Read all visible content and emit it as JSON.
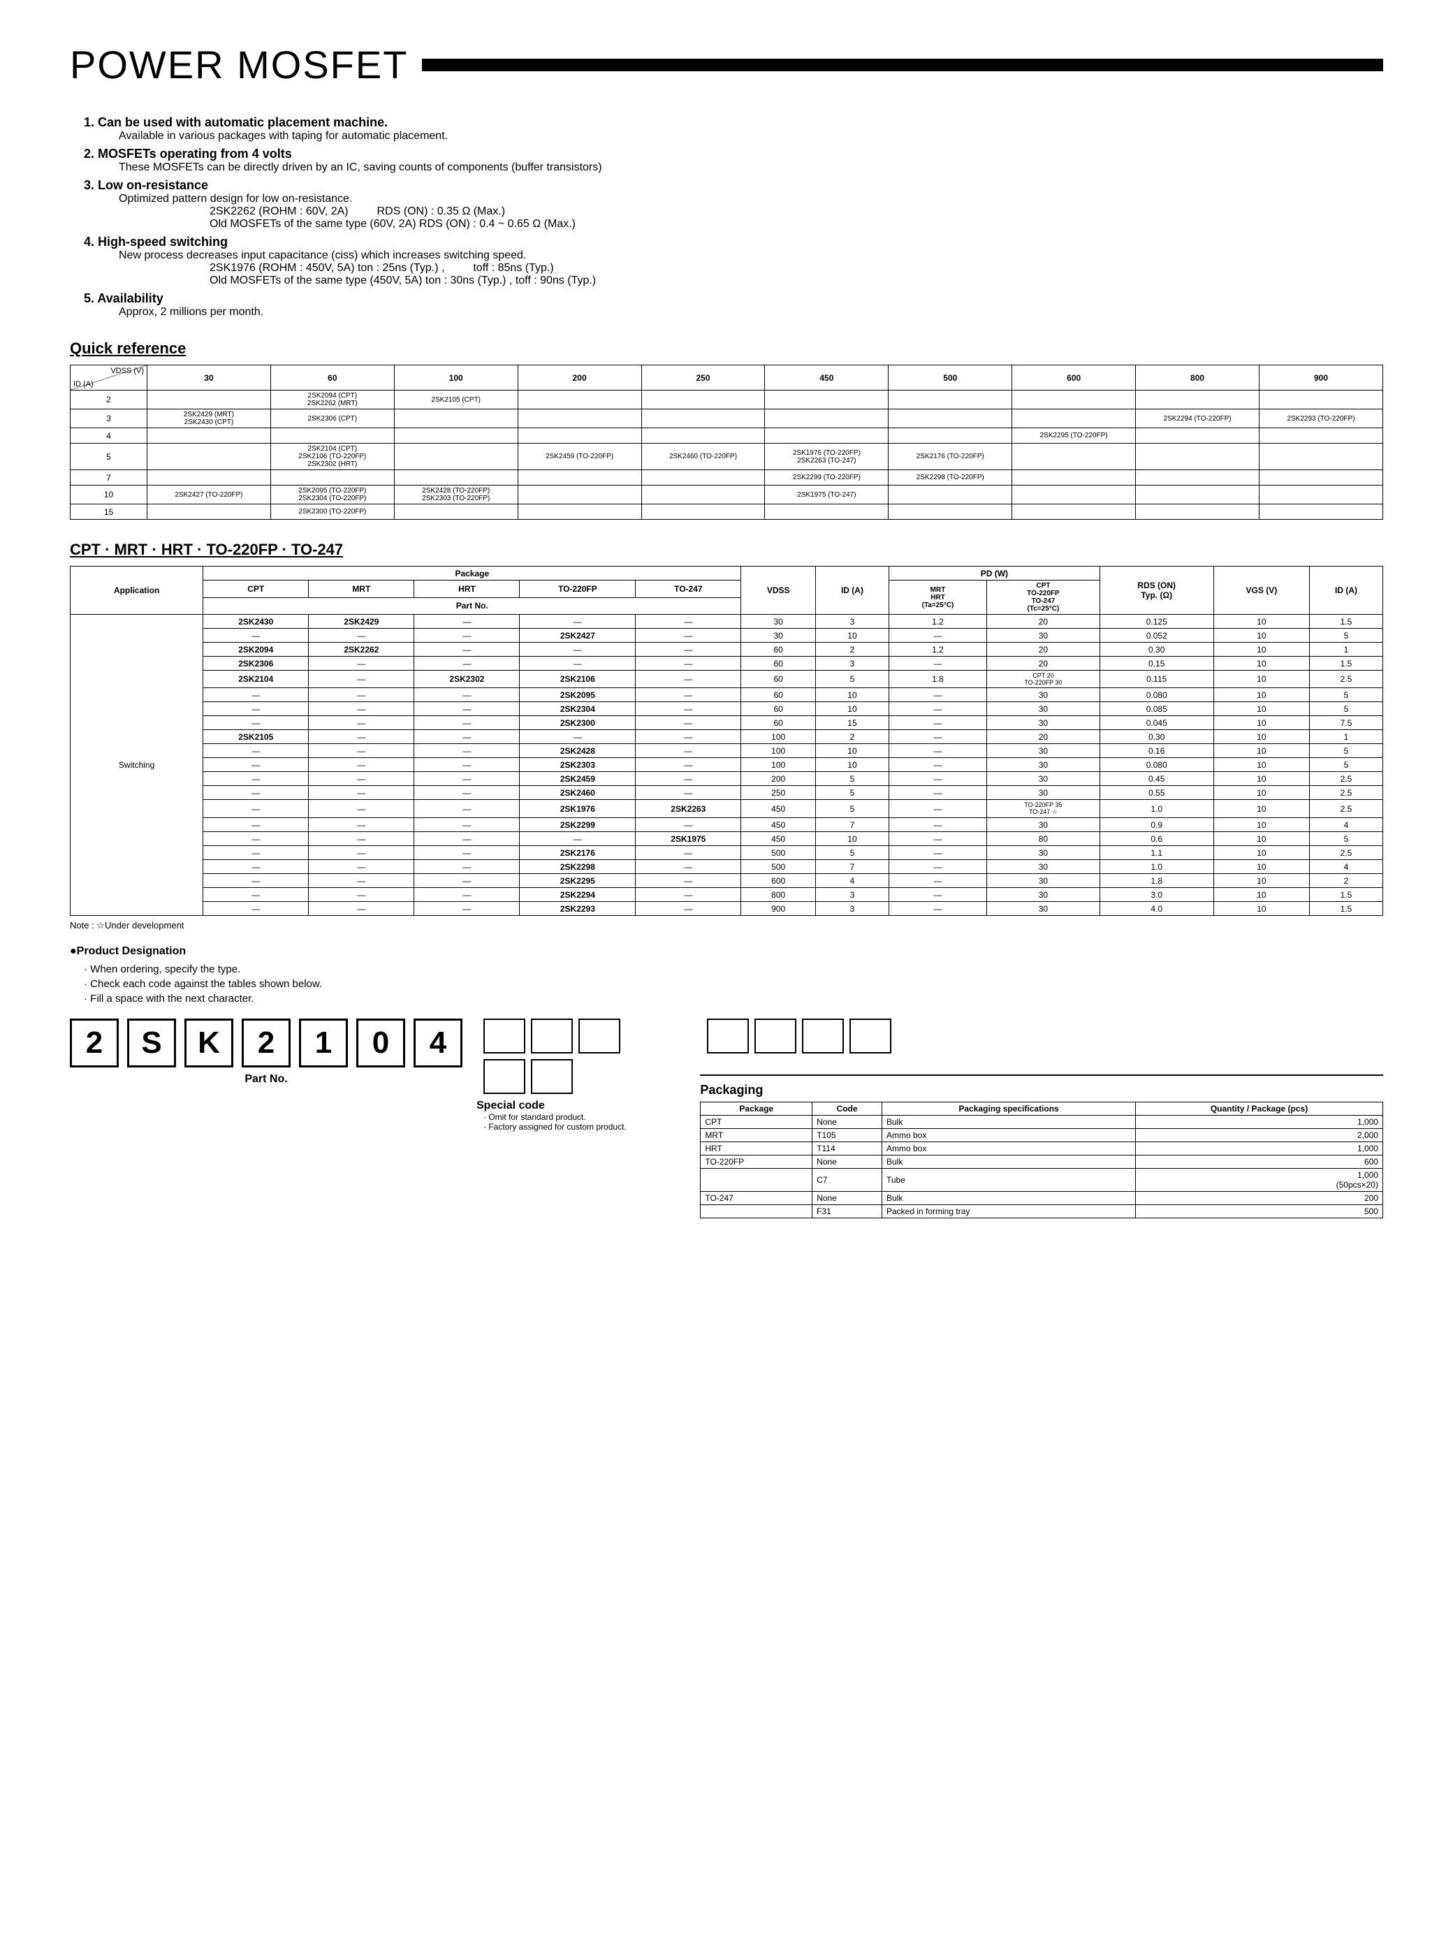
{
  "header": {
    "title": "POWER MOSFET"
  },
  "features": [
    {
      "num": "1.",
      "title": "Can be used with automatic placement machine.",
      "lines": [
        "Available in various packages with taping for automatic placement."
      ]
    },
    {
      "num": "2.",
      "title": "MOSFETs operating from 4 volts",
      "lines": [
        "These MOSFETs can be directly driven by an IC, saving counts of components (buffer transistors)"
      ]
    },
    {
      "num": "3.",
      "title": "Low on-resistance",
      "lines": [
        "Optimized pattern design for low on-resistance.",
        "2SK2262 (ROHM : 60V, 2A)    RDS (ON) : 0.35 Ω (Max.)",
        "Old MOSFETs of the same type (60V, 2A) RDS (ON) : 0.4 ~ 0.65 Ω (Max.)"
      ]
    },
    {
      "num": "4.",
      "title": "High-speed switching",
      "lines": [
        "New process decreases input capacitance (ciss) which increases switching speed.",
        "2SK1976 (ROHM : 450V, 5A) ton : 25ns (Typ.) ,    toff : 85ns (Typ.)",
        "Old MOSFETs of the same type (450V, 5A) ton : 30ns (Typ.) , toff : 90ns (Typ.)"
      ]
    },
    {
      "num": "5.",
      "title": "Availability",
      "lines": [
        "Approx, 2 millions per month."
      ]
    }
  ],
  "quick_reference": {
    "title": "Quick reference",
    "diag_top": "VDSS (V)",
    "diag_bot": "ID (A)",
    "v_cols": [
      "30",
      "60",
      "100",
      "200",
      "250",
      "450",
      "500",
      "600",
      "800",
      "900"
    ],
    "i_rows": [
      "2",
      "3",
      "4",
      "5",
      "7",
      "10",
      "15"
    ],
    "cells": {
      "2_60": "2SK2094 (CPT)\n2SK2262 (MRT)",
      "2_100": "2SK2105 (CPT)",
      "3_30": "2SK2429 (MRT)\n2SK2430 (CPT)",
      "3_60": "2SK2306 (CPT)",
      "3_800": "2SK2294 (TO-220FP)",
      "3_900": "2SK2293 (TO-220FP)",
      "4_600": "2SK2295 (TO-220FP)",
      "5_60": "2SK2104 (CPT)\n2SK2106 (TO-220FP)\n2SK2302 (HRT)",
      "5_200": "2SK2459 (TO-220FP)",
      "5_250": "2SK2460 (TO-220FP)",
      "5_450": "2SK1976 (TO-220FP)\n2SK2263 (TO-247)",
      "5_500": "2SK2176 (TO-220FP)",
      "7_450": "2SK2299 (TO-220FP)",
      "7_500": "2SK2298 (TO-220FP)",
      "10_30": "2SK2427 (TO-220FP)",
      "10_60": "2SK2095 (TO-220FP)\n2SK2304 (TO-220FP)",
      "10_100": "2SK2428 (TO-220FP)\n2SK2303 (TO-220FP)",
      "10_450": "2SK1975 (TO-247)",
      "15_60": "2SK2300 (TO-220FP)"
    }
  },
  "spec": {
    "title": "CPT · MRT · HRT · TO-220FP · TO-247",
    "headers": {
      "application": "Application",
      "package": "Package",
      "cpt": "CPT",
      "mrt": "MRT",
      "hrt": "HRT",
      "to220fp": "TO-220FP",
      "to247": "TO-247",
      "partno": "Part No.",
      "vdss": "VDSS",
      "id": "ID (A)",
      "pd": "PD (W)",
      "pd_mrt": "MRT\nHRT\n(Ta=25°C)",
      "pd_cpt": "CPT\nTO-220FP\nTO-247\n(Tc=25°C)",
      "rds": "RDS (ON)\nTyp. (Ω)",
      "vgs": "VGS (V)",
      "id2": "ID (A)"
    },
    "app": "Switching",
    "rows": [
      [
        "2SK2430",
        "2SK2429",
        "—",
        "—",
        "—",
        "30",
        "3",
        "1.2",
        "20",
        "0.125",
        "10",
        "1.5"
      ],
      [
        "—",
        "—",
        "—",
        "2SK2427",
        "—",
        "30",
        "10",
        "—",
        "30",
        "0.052",
        "10",
        "5"
      ],
      [
        "2SK2094",
        "2SK2262",
        "—",
        "—",
        "—",
        "60",
        "2",
        "1.2",
        "20",
        "0.30",
        "10",
        "1"
      ],
      [
        "2SK2306",
        "—",
        "—",
        "—",
        "—",
        "60",
        "3",
        "—",
        "20",
        "0.15",
        "10",
        "1.5"
      ],
      [
        "2SK2104",
        "—",
        "2SK2302",
        "2SK2106",
        "—",
        "60",
        "5",
        "1.8",
        "CPT 20 / TO-220FP 30",
        "0.115",
        "10",
        "2.5"
      ],
      [
        "—",
        "—",
        "—",
        "2SK2095",
        "—",
        "60",
        "10",
        "—",
        "30",
        "0.080",
        "10",
        "5"
      ],
      [
        "—",
        "—",
        "—",
        "2SK2304",
        "—",
        "60",
        "10",
        "—",
        "30",
        "0.085",
        "10",
        "5"
      ],
      [
        "—",
        "—",
        "—",
        "2SK2300",
        "—",
        "60",
        "15",
        "—",
        "30",
        "0.045",
        "10",
        "7.5"
      ],
      [
        "2SK2105",
        "—",
        "—",
        "—",
        "—",
        "100",
        "2",
        "—",
        "20",
        "0.30",
        "10",
        "1"
      ],
      [
        "—",
        "—",
        "—",
        "2SK2428",
        "—",
        "100",
        "10",
        "—",
        "30",
        "0.16",
        "10",
        "5"
      ],
      [
        "—",
        "—",
        "—",
        "2SK2303",
        "—",
        "100",
        "10",
        "—",
        "30",
        "0.080",
        "10",
        "5"
      ],
      [
        "—",
        "—",
        "—",
        "2SK2459",
        "—",
        "200",
        "5",
        "—",
        "30",
        "0.45",
        "10",
        "2.5"
      ],
      [
        "—",
        "—",
        "—",
        "2SK2460",
        "—",
        "250",
        "5",
        "—",
        "30",
        "0.55",
        "10",
        "2.5"
      ],
      [
        "—",
        "—",
        "—",
        "2SK1976",
        "2SK2263",
        "450",
        "5",
        "—",
        "TO-220FP 35 / TO-247 ☆",
        "1.0",
        "10",
        "2.5"
      ],
      [
        "—",
        "—",
        "—",
        "2SK2299",
        "—",
        "450",
        "7",
        "—",
        "30",
        "0.9",
        "10",
        "4"
      ],
      [
        "—",
        "—",
        "—",
        "—",
        "2SK1975",
        "450",
        "10",
        "—",
        "80",
        "0.6",
        "10",
        "5"
      ],
      [
        "—",
        "—",
        "—",
        "2SK2176",
        "—",
        "500",
        "5",
        "—",
        "30",
        "1.1",
        "10",
        "2.5"
      ],
      [
        "—",
        "—",
        "—",
        "2SK2298",
        "—",
        "500",
        "7",
        "—",
        "30",
        "1.0",
        "10",
        "4"
      ],
      [
        "—",
        "—",
        "—",
        "2SK2295",
        "—",
        "600",
        "4",
        "—",
        "30",
        "1.8",
        "10",
        "2"
      ],
      [
        "—",
        "—",
        "—",
        "2SK2294",
        "—",
        "800",
        "3",
        "—",
        "30",
        "3.0",
        "10",
        "1.5"
      ],
      [
        "—",
        "—",
        "—",
        "2SK2293",
        "—",
        "900",
        "3",
        "—",
        "30",
        "4.0",
        "10",
        "1.5"
      ]
    ],
    "note": "Note : ☆Under development"
  },
  "designation": {
    "title": "●Product Designation",
    "bullets": [
      "· When ordering, specify the type.",
      "· Check each code against the tables shown below.",
      "· Fill a space with the next character."
    ],
    "partno_chars": [
      "2",
      "S",
      "K",
      "2",
      "1",
      "0",
      "4"
    ],
    "partno_label": "Part No.",
    "special_label": "Special code",
    "special_sub1": "· Omit for standard product.",
    "special_sub2": "· Factory assigned for custom product."
  },
  "packaging": {
    "title": "Packaging",
    "headers": [
      "Package",
      "Code",
      "Packaging specifications",
      "Quantity / Package (pcs)"
    ],
    "rows": [
      [
        "CPT",
        "None",
        "Bulk",
        "1,000"
      ],
      [
        "MRT",
        "T105",
        "Ammo box",
        "2,000"
      ],
      [
        "HRT",
        "T114",
        "Ammo box",
        "1,000"
      ],
      [
        "TO-220FP",
        "None",
        "Bulk",
        "600"
      ],
      [
        "",
        "C7",
        "Tube",
        "1,000\n(50pcs×20)"
      ],
      [
        "TO-247",
        "None",
        "Bulk",
        "200"
      ],
      [
        "",
        "F31",
        "Packed in forming tray",
        "500"
      ]
    ]
  }
}
